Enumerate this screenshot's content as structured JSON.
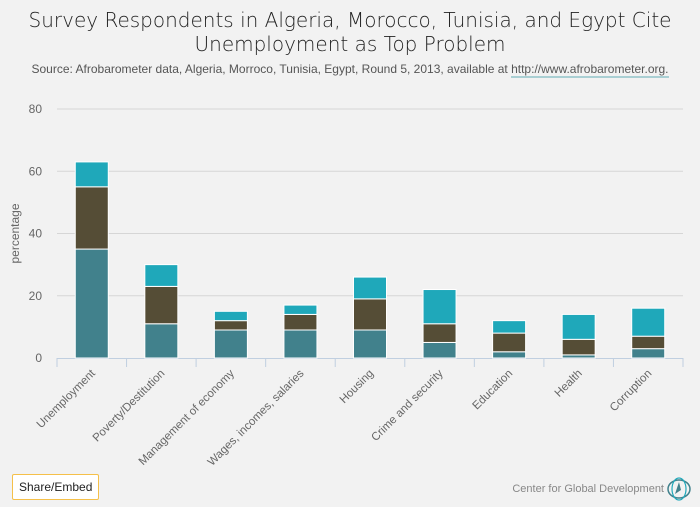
{
  "title_line1": "Survey Respondents in Algeria, Morocco, Tunisia, and Egypt Cite",
  "title_line2": "Unemployment as Top Problem",
  "subtitle_text": "Source: Afrobarometer data, Algeria, Morroco, Tunisia, Egypt, Round 5, 2013, available at ",
  "subtitle_link": "http://www.afrobarometer.org.",
  "share_label": "Share/Embed",
  "credit": "Center for Global Development",
  "chart_data": {
    "type": "bar",
    "stacked": true,
    "title": "Survey Respondents in Algeria, Morocco, Tunisia, and Egypt Cite Unemployment as Top Problem",
    "xlabel": "",
    "ylabel": "percentage",
    "ylim": [
      0,
      80
    ],
    "yticks": [
      "0",
      "20",
      "40",
      "60",
      "80"
    ],
    "grid": true,
    "categories": [
      "Unemployment",
      "Poverty/Destitution",
      "Management of economy",
      "Wages, incomes, salaries",
      "Housing",
      "Crime and security",
      "Education",
      "Health",
      "Corruption"
    ],
    "series": [
      {
        "color": "#41818c",
        "values": [
          35,
          11,
          9,
          9,
          9,
          5,
          2,
          1,
          3
        ]
      },
      {
        "color": "#554d36",
        "values": [
          20,
          12,
          3,
          5,
          10,
          6,
          6,
          5,
          4
        ]
      },
      {
        "color": "#1fa8ba",
        "values": [
          8,
          7,
          3,
          3,
          7,
          11,
          4,
          8,
          9
        ]
      }
    ]
  }
}
